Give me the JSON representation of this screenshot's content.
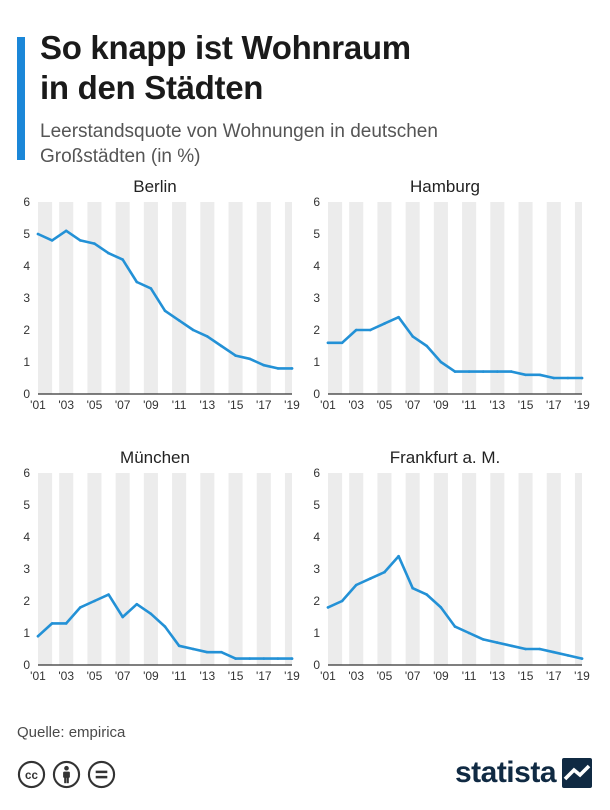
{
  "header": {
    "title_line1": "So knapp ist Wohnraum",
    "title_line2": "in den Städten",
    "subtitle_line1": "Leerstandsquote von Wohnungen in deutschen",
    "subtitle_line2": "Großstädten (in %)"
  },
  "colors": {
    "accent": "#1b87d8",
    "line": "#2391d6",
    "stripe": "#ececec",
    "axis": "#333333",
    "brand": "#102a43"
  },
  "chart_data": [
    {
      "type": "line",
      "title": "Berlin",
      "x": [
        2001,
        2002,
        2003,
        2004,
        2005,
        2006,
        2007,
        2008,
        2009,
        2010,
        2011,
        2012,
        2013,
        2014,
        2015,
        2016,
        2017,
        2018,
        2019
      ],
      "values": [
        5.0,
        4.8,
        5.1,
        4.8,
        4.7,
        4.4,
        4.2,
        3.5,
        3.3,
        2.6,
        2.3,
        2.0,
        1.8,
        1.5,
        1.2,
        1.1,
        0.9,
        0.8,
        0.8
      ],
      "ylim": [
        0,
        6
      ],
      "yticks": [
        "0",
        "1",
        "2",
        "3",
        "4",
        "5",
        "6"
      ],
      "xtick_labels": [
        "'01",
        "'03",
        "'05",
        "'07",
        "'09",
        "'11",
        "'13",
        "'15",
        "'17",
        "'19"
      ]
    },
    {
      "type": "line",
      "title": "Hamburg",
      "x": [
        2001,
        2002,
        2003,
        2004,
        2005,
        2006,
        2007,
        2008,
        2009,
        2010,
        2011,
        2012,
        2013,
        2014,
        2015,
        2016,
        2017,
        2018,
        2019
      ],
      "values": [
        1.6,
        1.6,
        2.0,
        2.0,
        2.2,
        2.4,
        1.8,
        1.5,
        1.0,
        0.7,
        0.7,
        0.7,
        0.7,
        0.7,
        0.6,
        0.6,
        0.5,
        0.5,
        0.5
      ],
      "ylim": [
        0,
        6
      ],
      "yticks": [
        "0",
        "1",
        "2",
        "3",
        "4",
        "5",
        "6"
      ],
      "xtick_labels": [
        "'01",
        "'03",
        "'05",
        "'07",
        "'09",
        "'11",
        "'13",
        "'15",
        "'17",
        "'19"
      ]
    },
    {
      "type": "line",
      "title": "München",
      "x": [
        2001,
        2002,
        2003,
        2004,
        2005,
        2006,
        2007,
        2008,
        2009,
        2010,
        2011,
        2012,
        2013,
        2014,
        2015,
        2016,
        2017,
        2018,
        2019
      ],
      "values": [
        0.9,
        1.3,
        1.3,
        1.8,
        2.0,
        2.2,
        1.5,
        1.9,
        1.6,
        1.2,
        0.6,
        0.5,
        0.4,
        0.4,
        0.2,
        0.2,
        0.2,
        0.2,
        0.2
      ],
      "ylim": [
        0,
        6
      ],
      "yticks": [
        "0",
        "1",
        "2",
        "3",
        "4",
        "5",
        "6"
      ],
      "xtick_labels": [
        "'01",
        "'03",
        "'05",
        "'07",
        "'09",
        "'11",
        "'13",
        "'15",
        "'17",
        "'19"
      ]
    },
    {
      "type": "line",
      "title": "Frankfurt a. M.",
      "x": [
        2001,
        2002,
        2003,
        2004,
        2005,
        2006,
        2007,
        2008,
        2009,
        2010,
        2011,
        2012,
        2013,
        2014,
        2015,
        2016,
        2017,
        2018,
        2019
      ],
      "values": [
        1.8,
        2.0,
        2.5,
        2.7,
        2.9,
        3.4,
        2.4,
        2.2,
        1.8,
        1.2,
        1.0,
        0.8,
        0.7,
        0.6,
        0.5,
        0.5,
        0.4,
        0.3,
        0.2
      ],
      "ylim": [
        0,
        6
      ],
      "yticks": [
        "0",
        "1",
        "2",
        "3",
        "4",
        "5",
        "6"
      ],
      "xtick_labels": [
        "'01",
        "'03",
        "'05",
        "'07",
        "'09",
        "'11",
        "'13",
        "'15",
        "'17",
        "'19"
      ]
    }
  ],
  "footer": {
    "source": "Quelle: empirica",
    "license_icons": [
      "cc-icon",
      "by-person-icon",
      "nd-equal-icon"
    ],
    "brand": "statista",
    "brand_icon": "statista-logo-icon"
  }
}
